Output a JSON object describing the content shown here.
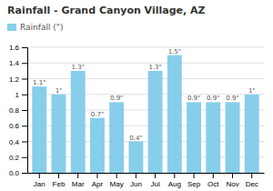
{
  "chart_data": {
    "type": "bar",
    "title": "Rainfall - Grand Canyon Village, AZ",
    "categories": [
      "Jan",
      "Feb",
      "Mar",
      "Apr",
      "May",
      "Jun",
      "Jul",
      "Aug",
      "Sep",
      "Oct",
      "Nov",
      "Dec"
    ],
    "series": [
      {
        "name": "Rainfall (\")",
        "color": "#87ceeb",
        "values": [
          1.1,
          1.0,
          1.3,
          0.7,
          0.9,
          0.4,
          1.3,
          1.5,
          0.9,
          0.9,
          0.9,
          1.0
        ],
        "value_labels": [
          "1.1\"",
          "1\"",
          "1.3\"",
          "0.7\"",
          "0.9\"",
          "0.4\"",
          "1.3\"",
          "1.5\"",
          "0.9\"",
          "0.9\"",
          "0.9\"",
          "1\""
        ]
      }
    ],
    "ylim": [
      0,
      1.6
    ],
    "yticks": [
      {
        "value": 0,
        "label": "0.0"
      },
      0.2,
      0.4,
      0.6,
      0.8,
      1,
      1.2,
      1.4,
      1.6
    ],
    "grid": true,
    "legend": "top-left",
    "data_labels": true
  }
}
